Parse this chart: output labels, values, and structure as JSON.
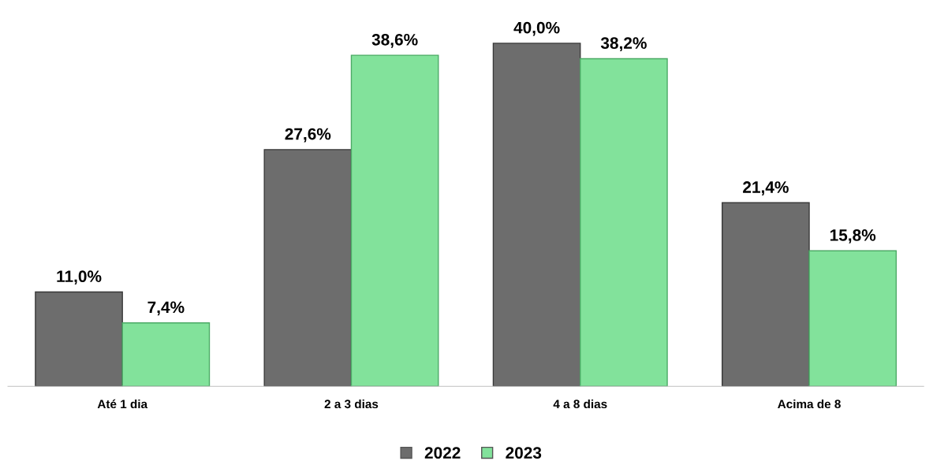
{
  "chart_data": {
    "type": "bar",
    "categories": [
      "Até 1 dia",
      "2 a 3 dias",
      "4 a 8 dias",
      "Acima de 8"
    ],
    "series": [
      {
        "name": "2022",
        "color": "#6d6d6d",
        "values": [
          11.0,
          27.6,
          40.0,
          21.4
        ],
        "value_labels": [
          "11,0%",
          "27,6%",
          "40,0%",
          "21,4%"
        ]
      },
      {
        "name": "2023",
        "color": "#82e29b",
        "values": [
          7.4,
          38.6,
          38.2,
          15.8
        ],
        "value_labels": [
          "7,4%",
          "38,6%",
          "38,2%",
          "15,8%"
        ]
      }
    ],
    "legend": "bottom",
    "tick_labels": "x"
  }
}
